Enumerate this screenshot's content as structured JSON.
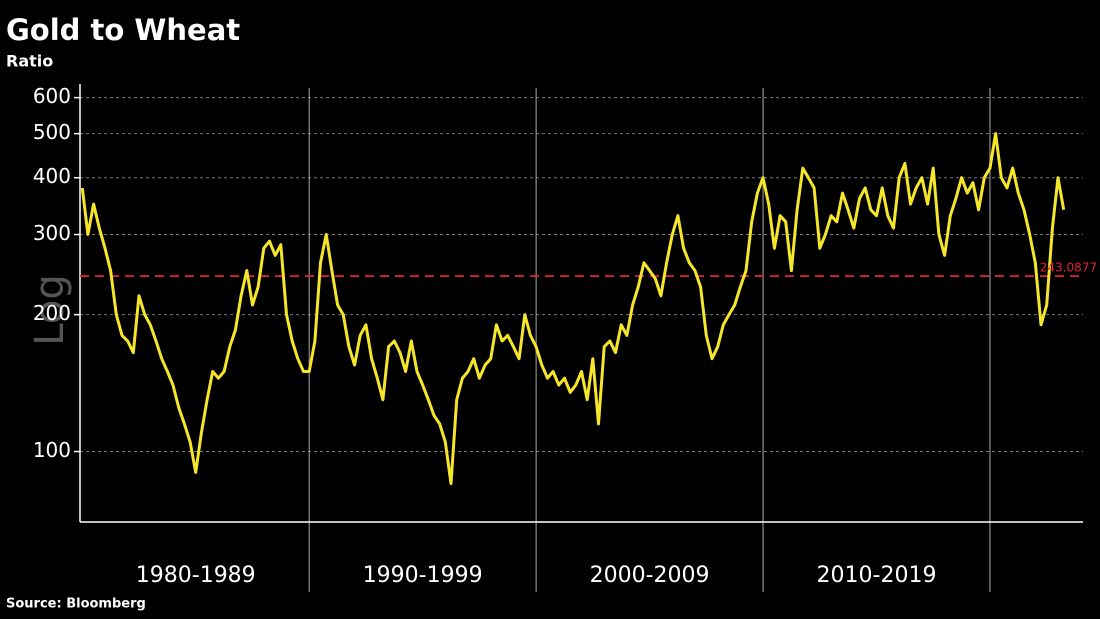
{
  "chart_data": {
    "type": "line",
    "title": "Gold to Wheat",
    "subtitle": "Ratio",
    "source": "Source: Bloomberg",
    "scale_label": "Log",
    "log_scale": true,
    "grid": true,
    "color": "#f5e62a",
    "ylim": [
      70,
      630
    ],
    "yticks": [
      100,
      200,
      300,
      400,
      500,
      600
    ],
    "xlim": [
      1979.9,
      2024.1
    ],
    "decades": [
      {
        "label": "1980-1989",
        "start": 1980,
        "end": 1990
      },
      {
        "label": "1990-1999",
        "start": 1990,
        "end": 2000
      },
      {
        "label": "2000-2009",
        "start": 2000,
        "end": 2010
      },
      {
        "label": "2010-2019",
        "start": 2010,
        "end": 2020
      }
    ],
    "reference_line": {
      "value": 243.0877,
      "label": "243.0877",
      "color": "#e0233a"
    },
    "x": [
      1980,
      1980.25,
      1980.5,
      1980.75,
      1981,
      1981.25,
      1981.5,
      1981.75,
      1982,
      1982.25,
      1982.5,
      1982.75,
      1983,
      1983.25,
      1983.5,
      1983.75,
      1984,
      1984.25,
      1984.5,
      1984.75,
      1985,
      1985.25,
      1985.5,
      1985.75,
      1986,
      1986.25,
      1986.5,
      1986.75,
      1987,
      1987.25,
      1987.5,
      1987.75,
      1988,
      1988.25,
      1988.5,
      1988.75,
      1989,
      1989.25,
      1989.5,
      1989.75,
      1990,
      1990.25,
      1990.5,
      1990.75,
      1991,
      1991.25,
      1991.5,
      1991.75,
      1992,
      1992.25,
      1992.5,
      1992.75,
      1993,
      1993.25,
      1993.5,
      1993.75,
      1994,
      1994.25,
      1994.5,
      1994.75,
      1995,
      1995.25,
      1995.5,
      1995.75,
      1996,
      1996.25,
      1996.5,
      1996.75,
      1997,
      1997.25,
      1997.5,
      1997.75,
      1998,
      1998.25,
      1998.5,
      1998.75,
      1999,
      1999.25,
      1999.5,
      1999.75,
      2000,
      2000.25,
      2000.5,
      2000.75,
      2001,
      2001.25,
      2001.5,
      2001.75,
      2002,
      2002.25,
      2002.5,
      2002.75,
      2003,
      2003.25,
      2003.5,
      2003.75,
      2004,
      2004.25,
      2004.5,
      2004.75,
      2005,
      2005.25,
      2005.5,
      2005.75,
      2006,
      2006.25,
      2006.5,
      2006.75,
      2007,
      2007.25,
      2007.5,
      2007.75,
      2008,
      2008.25,
      2008.5,
      2008.75,
      2009,
      2009.25,
      2009.5,
      2009.75,
      2010,
      2010.25,
      2010.5,
      2010.75,
      2011,
      2011.25,
      2011.5,
      2011.75,
      2012,
      2012.25,
      2012.5,
      2012.75,
      2013,
      2013.25,
      2013.5,
      2013.75,
      2014,
      2014.25,
      2014.5,
      2014.75,
      2015,
      2015.25,
      2015.5,
      2015.75,
      2016,
      2016.25,
      2016.5,
      2016.75,
      2017,
      2017.25,
      2017.5,
      2017.75,
      2018,
      2018.25,
      2018.5,
      2018.75,
      2019,
      2019.25,
      2019.5,
      2019.75,
      2020,
      2020.25,
      2020.5,
      2020.75,
      2021,
      2021.25,
      2021.5,
      2021.75,
      2022,
      2022.25,
      2022.5,
      2022.75,
      2023,
      2023.25
    ],
    "values": [
      380,
      300,
      350,
      310,
      280,
      250,
      200,
      180,
      175,
      165,
      220,
      200,
      190,
      175,
      160,
      150,
      140,
      125,
      115,
      105,
      90,
      110,
      130,
      150,
      145,
      150,
      170,
      185,
      220,
      250,
      210,
      230,
      280,
      290,
      270,
      285,
      200,
      175,
      160,
      150,
      150,
      175,
      260,
      300,
      250,
      210,
      200,
      170,
      155,
      180,
      190,
      160,
      145,
      130,
      170,
      175,
      165,
      150,
      175,
      150,
      140,
      130,
      120,
      115,
      105,
      85,
      130,
      145,
      150,
      160,
      145,
      155,
      160,
      190,
      175,
      180,
      170,
      160,
      200,
      180,
      170,
      155,
      145,
      150,
      140,
      145,
      135,
      140,
      150,
      130,
      160,
      115,
      170,
      175,
      165,
      190,
      180,
      210,
      230,
      260,
      250,
      240,
      220,
      260,
      300,
      330,
      280,
      260,
      250,
      230,
      180,
      160,
      170,
      190,
      200,
      210,
      230,
      250,
      320,
      370,
      400,
      350,
      280,
      330,
      320,
      250,
      340,
      420,
      400,
      380,
      280,
      300,
      330,
      320,
      370,
      340,
      310,
      360,
      380,
      340,
      330,
      380,
      330,
      310,
      400,
      430,
      350,
      380,
      400,
      350,
      420,
      300,
      270,
      330,
      360,
      400,
      370,
      390,
      340,
      400,
      420,
      500,
      400,
      380,
      420,
      370,
      340,
      300,
      260,
      190,
      210,
      310,
      400,
      340
    ]
  }
}
